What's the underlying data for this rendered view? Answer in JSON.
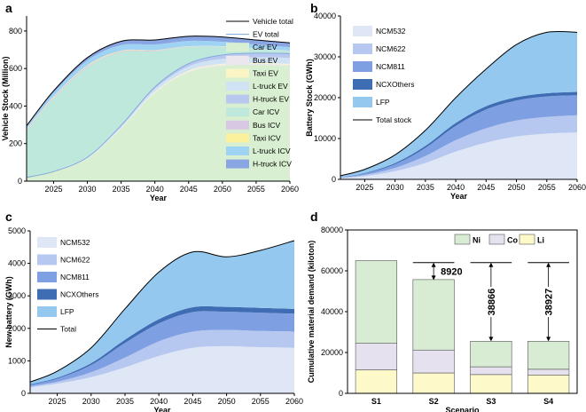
{
  "chart_data": [
    {
      "panel": "a",
      "type": "area",
      "xlabel": "Year",
      "ylabel": "Vehicle Stock (Million)",
      "xlim": [
        2021,
        2060
      ],
      "ylim": [
        0,
        880
      ],
      "xticks": [
        2025,
        2030,
        2035,
        2040,
        2045,
        2050,
        2055,
        2060
      ],
      "yticks": [
        0,
        200,
        400,
        600,
        800
      ],
      "x": [
        2021,
        2025,
        2030,
        2035,
        2040,
        2045,
        2050,
        2055,
        2060
      ],
      "series": [
        {
          "name": "Car EV",
          "color": "#d9efd1",
          "values": [
            20,
            50,
            120,
            280,
            470,
            580,
            615,
            620,
            615
          ]
        },
        {
          "name": "Bus EV",
          "color": "#ece6ee",
          "values": [
            0,
            0,
            1,
            2,
            4,
            5,
            6,
            6,
            6
          ]
        },
        {
          "name": "Taxi EV",
          "color": "#fbf5c6",
          "values": [
            0,
            0,
            1,
            2,
            3,
            4,
            4,
            4,
            4
          ]
        },
        {
          "name": "L-truck EV",
          "color": "#cfe3f5",
          "values": [
            0,
            1,
            3,
            8,
            15,
            22,
            27,
            30,
            32
          ]
        },
        {
          "name": "H-truck EV",
          "color": "#b9c8ee",
          "values": [
            0,
            0,
            2,
            5,
            10,
            15,
            20,
            22,
            23
          ]
        },
        {
          "name": "Car ICV",
          "color": "#bfe8dd",
          "values": [
            250,
            390,
            480,
            390,
            190,
            90,
            45,
            25,
            15
          ]
        },
        {
          "name": "Bus ICV",
          "color": "#d9c8e4",
          "values": [
            5,
            6,
            6,
            5,
            4,
            2,
            1,
            1,
            1
          ]
        },
        {
          "name": "Taxi ICV",
          "color": "#fbf19c",
          "values": [
            3,
            4,
            4,
            3,
            2,
            1,
            1,
            0,
            0
          ]
        },
        {
          "name": "L-truck ICV",
          "color": "#9fd3f3",
          "values": [
            12,
            20,
            26,
            30,
            30,
            28,
            24,
            20,
            18
          ]
        },
        {
          "name": "H-truck ICV",
          "color": "#8aa6e2",
          "values": [
            5,
            10,
            15,
            20,
            24,
            25,
            25,
            24,
            23
          ]
        }
      ],
      "lines": [
        {
          "name": "Vehicle total",
          "color": "#000000",
          "values": [
            295,
            481,
            658,
            745,
            752,
            772,
            768,
            752,
            737
          ]
        },
        {
          "name": "EV total",
          "color": "#7fa6dc",
          "values": [
            20,
            51,
            127,
            297,
            502,
            626,
            672,
            682,
            680
          ]
        }
      ]
    },
    {
      "panel": "b",
      "type": "area",
      "xlabel": "Year",
      "ylabel": "Battery Stock (GWh)",
      "xlim": [
        2021,
        2060
      ],
      "ylim": [
        0,
        40000
      ],
      "xticks": [
        2025,
        2030,
        2035,
        2040,
        2045,
        2050,
        2055,
        2060
      ],
      "yticks": [
        0,
        10000,
        20000,
        30000,
        40000
      ],
      "x": [
        2021,
        2025,
        2030,
        2035,
        2040,
        2045,
        2050,
        2055,
        2060
      ],
      "series": [
        {
          "name": "NCM532",
          "color": "#dfe6f6",
          "values": [
            300,
            800,
            2000,
            4000,
            6800,
            9000,
            10500,
            11200,
            11500
          ]
        },
        {
          "name": "NCM622",
          "color": "#b6c8ef",
          "values": [
            100,
            300,
            800,
            1700,
            2800,
            3500,
            3900,
            4100,
            4200
          ]
        },
        {
          "name": "NCM811",
          "color": "#7f9fe3",
          "values": [
            100,
            300,
            900,
            2000,
            3500,
            4600,
            4900,
            5000,
            4900
          ]
        },
        {
          "name": "NCXOthers",
          "color": "#3f6db4",
          "values": [
            50,
            150,
            300,
            500,
            700,
            800,
            800,
            800,
            800
          ]
        },
        {
          "name": "LFP",
          "color": "#95c8ef",
          "values": [
            350,
            900,
            2000,
            3800,
            6200,
            9100,
            12900,
            14900,
            14600
          ]
        }
      ],
      "lines": [
        {
          "name": "Total stock",
          "color": "#000000",
          "values": [
            900,
            2450,
            6000,
            12000,
            20000,
            27000,
            33000,
            36000,
            36000
          ]
        }
      ]
    },
    {
      "panel": "c",
      "type": "area",
      "xlabel": "Year",
      "ylabel": "New battery (GWh)",
      "xlim": [
        2021,
        2060
      ],
      "ylim": [
        0,
        5000
      ],
      "xticks": [
        2025,
        2030,
        2035,
        2040,
        2045,
        2050,
        2055,
        2060
      ],
      "yticks": [
        0,
        1000,
        2000,
        3000,
        4000,
        5000
      ],
      "x": [
        2021,
        2025,
        2030,
        2035,
        2040,
        2045,
        2050,
        2055,
        2060
      ],
      "series": [
        {
          "name": "NCM532",
          "color": "#dfe6f6",
          "values": [
            180,
            300,
            500,
            800,
            1150,
            1400,
            1450,
            1420,
            1400
          ]
        },
        {
          "name": "NCM622",
          "color": "#b6c8ef",
          "values": [
            40,
            60,
            150,
            300,
            450,
            500,
            500,
            500,
            500
          ]
        },
        {
          "name": "NCM811",
          "color": "#7f9fe3",
          "values": [
            40,
            90,
            220,
            450,
            550,
            600,
            560,
            560,
            550
          ]
        },
        {
          "name": "NCXOthers",
          "color": "#3f6db4",
          "values": [
            20,
            30,
            60,
            100,
            130,
            150,
            150,
            150,
            150
          ]
        },
        {
          "name": "LFP",
          "color": "#95c8ef",
          "values": [
            70,
            200,
            470,
            950,
            1450,
            1700,
            1540,
            1770,
            2100
          ]
        }
      ],
      "lines": [
        {
          "name": "Total",
          "color": "#000000",
          "values": [
            350,
            680,
            1400,
            2600,
            3730,
            4350,
            4200,
            4400,
            4700
          ]
        }
      ]
    },
    {
      "panel": "d",
      "type": "bar",
      "xlabel": "Scenario",
      "ylabel": "Cumulative material demand (kiloton)",
      "ylim": [
        0,
        80000
      ],
      "yticks": [
        0,
        20000,
        40000,
        60000,
        80000
      ],
      "categories": [
        "S1",
        "S2",
        "S3",
        "S4"
      ],
      "series": [
        {
          "name": "Li",
          "color": "#fdf9c9",
          "values": [
            11500,
            10000,
            9200,
            9000
          ]
        },
        {
          "name": "Co",
          "color": "#e6e1ef",
          "values": [
            13000,
            11200,
            3800,
            2800
          ]
        },
        {
          "name": "Ni",
          "color": "#d7ecd3",
          "values": [
            40500,
            34500,
            12500,
            13700
          ]
        }
      ],
      "annotations": [
        {
          "category": "S2",
          "text": "8920",
          "from": 64000,
          "to": 55500
        },
        {
          "category": "S3",
          "text": "38866",
          "from": 64000,
          "to": 25500
        },
        {
          "category": "S4",
          "text": "38927",
          "from": 64000,
          "to": 25500
        }
      ]
    }
  ],
  "panels": {
    "a": "a",
    "b": "b",
    "c": "c",
    "d": "d"
  }
}
